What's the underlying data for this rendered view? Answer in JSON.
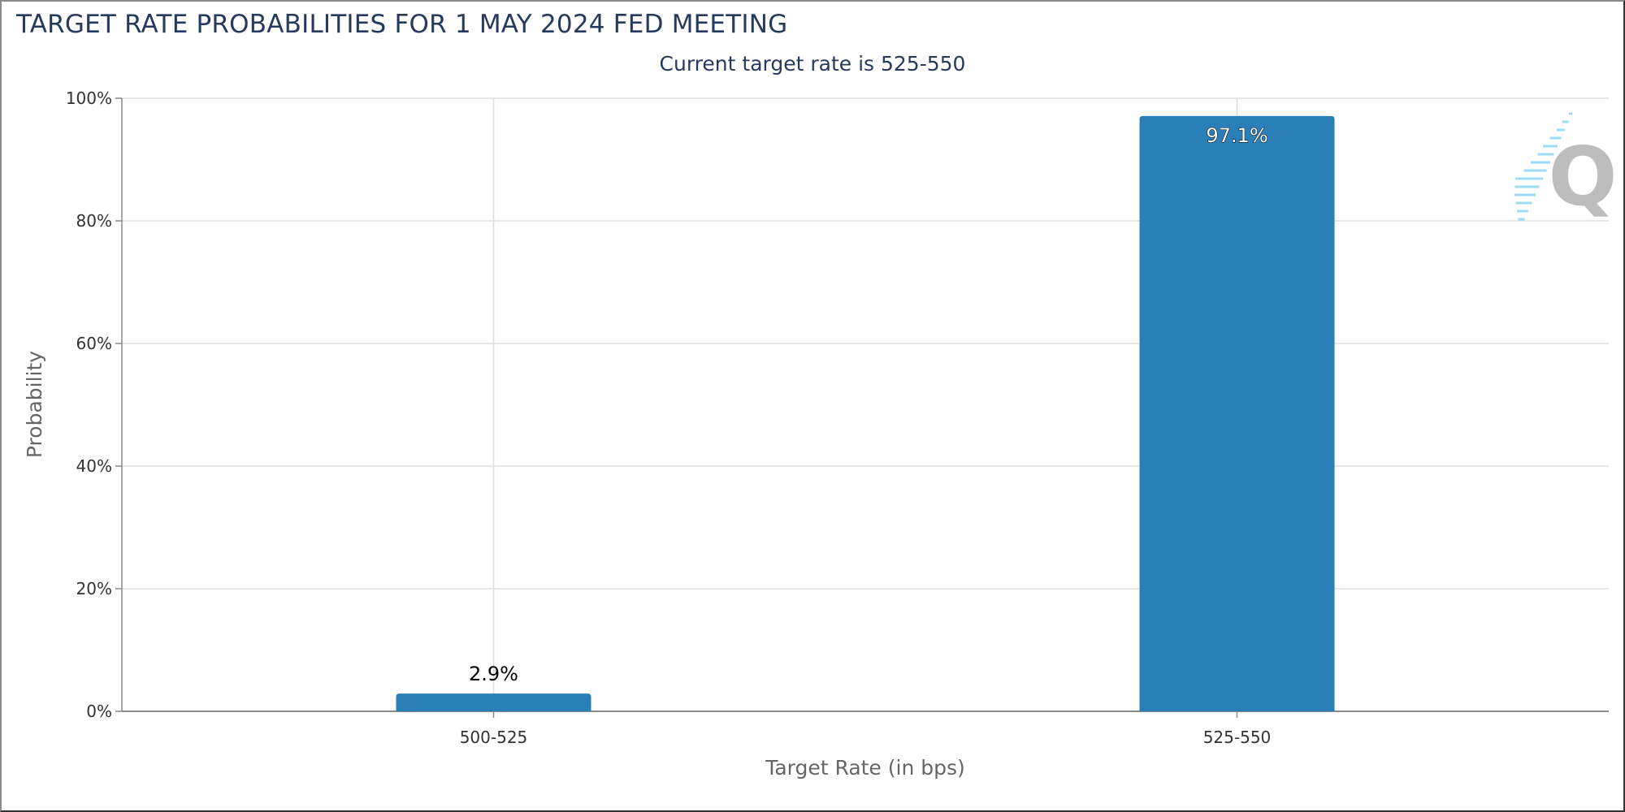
{
  "header": {
    "title": "TARGET RATE PROBABILITIES FOR 1 MAY 2024 FED MEETING",
    "subtitle": "Current target rate is 525-550"
  },
  "chart_data": {
    "type": "bar",
    "title": "TARGET RATE PROBABILITIES FOR 1 MAY 2024 FED MEETING",
    "subtitle": "Current target rate is 525-550",
    "categories": [
      "500-525",
      "525-550"
    ],
    "values": [
      2.9,
      97.1
    ],
    "data_labels": [
      "2.9%",
      "97.1%"
    ],
    "xlabel": "Target Rate (in bps)",
    "ylabel": "Probability",
    "ylim": [
      0,
      100
    ],
    "yticks": [
      "0%",
      "20%",
      "40%",
      "60%",
      "80%",
      "100%"
    ],
    "grid": true,
    "bar_color": "#2a7fb8"
  },
  "logo": {
    "text": "Q"
  }
}
